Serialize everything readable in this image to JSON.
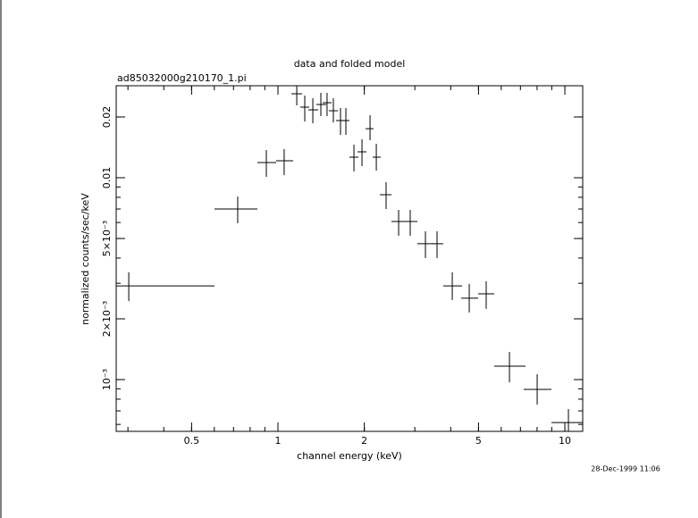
{
  "chart_data": {
    "type": "scatter",
    "title": "data and folded model",
    "subtitle": "ad85032000g210170_1.pi",
    "xlabel": "channel energy (keV)",
    "ylabel": "normalized counts/sec/keV",
    "timestamp": "28-Dec-1999 11:06",
    "xscale": "log",
    "yscale": "log",
    "color": "#000000",
    "xlim": [
      0.273,
      11.54
    ],
    "ylim": [
      0.000554,
      0.02856
    ],
    "xticks": [
      0.5,
      1,
      2,
      5,
      10
    ],
    "yticks": [
      {
        "value": 0.001,
        "label": "10⁻³"
      },
      {
        "value": 0.002,
        "label": "2×10⁻³"
      },
      {
        "value": 0.005,
        "label": "5×10⁻³"
      },
      0.01,
      0.02
    ],
    "x": [
      0.302,
      0.724,
      0.911,
      1.051,
      1.163,
      1.24,
      1.323,
      1.411,
      1.483,
      1.56,
      1.652,
      1.725,
      1.84,
      1.963,
      2.094,
      2.202,
      2.382,
      2.634,
      2.891,
      3.266,
      3.585,
      4.051,
      4.642,
      5.319,
      6.411,
      8.007,
      10.29
    ],
    "x_low": [
      0.273,
      0.601,
      0.848,
      0.986,
      1.114,
      1.196,
      1.276,
      1.361,
      1.432,
      1.505,
      1.594,
      1.664,
      1.775,
      1.894,
      2.02,
      2.139,
      2.265,
      2.487,
      2.79,
      3.062,
      3.459,
      3.768,
      4.352,
      4.986,
      5.674,
      7.19,
      8.98
    ],
    "x_high": [
      0.601,
      0.848,
      0.986,
      1.13,
      1.214,
      1.285,
      1.381,
      1.473,
      1.538,
      1.617,
      1.713,
      1.775,
      1.907,
      2.034,
      2.154,
      2.281,
      2.487,
      2.79,
      3.062,
      3.483,
      3.768,
      4.384,
      4.986,
      5.674,
      7.29,
      8.98,
      11.54
    ],
    "values": [
      0.00291,
      0.007,
      0.01189,
      0.01214,
      0.02606,
      0.02237,
      0.02169,
      0.02306,
      0.02353,
      0.02147,
      0.0192,
      0.0192,
      0.01264,
      0.01344,
      0.0175,
      0.01264,
      0.00824,
      0.00607,
      0.00607,
      0.00471,
      0.00471,
      0.00291,
      0.00253,
      0.00266,
      0.001165,
      0.000894,
      0.000613
    ],
    "y_low": [
      0.00245,
      0.00595,
      0.0101,
      0.0103,
      0.02283,
      0.019,
      0.0186,
      0.0202,
      0.0202,
      0.0188,
      0.0163,
      0.0163,
      0.01074,
      0.01142,
      0.01534,
      0.01085,
      0.007,
      0.00516,
      0.00516,
      0.004,
      0.004,
      0.00248,
      0.00215,
      0.00224,
      0.00097,
      0.000752,
      0.000554
    ],
    "y_high": [
      0.0034,
      0.00807,
      0.01372,
      0.01386,
      0.02856,
      0.02553,
      0.02476,
      0.02633,
      0.02633,
      0.02476,
      0.02214,
      0.02214,
      0.01458,
      0.0155,
      0.0204,
      0.01473,
      0.0095,
      0.00693,
      0.00693,
      0.00543,
      0.00543,
      0.0034,
      0.00298,
      0.00307,
      0.00137,
      0.001063,
      0.000714
    ]
  }
}
